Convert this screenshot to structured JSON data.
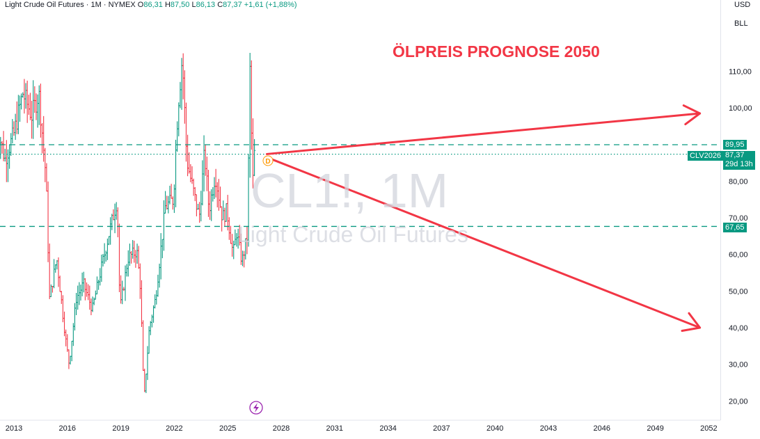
{
  "header": {
    "symbol_name": "Light Crude Oil Futures",
    "separator1": "·",
    "interval": "1M",
    "separator2": "·",
    "exchange": "NYMEX",
    "open_label": "O",
    "open": "86,31",
    "high_label": "H",
    "high": "87,50",
    "low_label": "L",
    "low": "86,13",
    "close_label": "C",
    "close": "87,37",
    "change": "+1,61 (+1,88%)"
  },
  "axis_buttons": {
    "currency": "USD",
    "unit": "BLL"
  },
  "watermark": {
    "ticker": "CL1!, 1M",
    "name": "Light Crude Oil Futures"
  },
  "annotation": {
    "title": "ÖLPREIS PROGNOSE 2050",
    "dividend_marker": "D"
  },
  "price_tags": {
    "upper_level": "89,95",
    "contract": "CLV2026",
    "last_price": "87,37",
    "countdown": "29d 13h",
    "lower_level": "67,65"
  },
  "colors": {
    "up": "#089981",
    "down": "#f23645",
    "level_line": "#089981",
    "arrow": "#f23645",
    "marker": "#ff9800",
    "lightning": "#9c27b0"
  },
  "chart_data": {
    "type": "ohlc",
    "symbol": "CL1!",
    "interval": "1M",
    "y_ticks": [
      "20,00",
      "30,00",
      "40,00",
      "50,00",
      "60,00",
      "70,00",
      "80,00",
      "100,00",
      "110,00"
    ],
    "y_tick_values": [
      20,
      30,
      40,
      50,
      60,
      70,
      80,
      100,
      110
    ],
    "x_ticks": [
      "2013",
      "2016",
      "2019",
      "2022",
      "2025",
      "2028",
      "2031",
      "2034",
      "2037",
      "2040",
      "2043",
      "2046",
      "2049",
      "2052"
    ],
    "x_tick_values": [
      2013,
      2016,
      2019,
      2022,
      2025,
      2028,
      2031,
      2034,
      2037,
      2040,
      2043,
      2046,
      2049,
      2052
    ],
    "horizontal_levels": [
      89.95,
      67.65
    ],
    "last_price": 87.37,
    "trend_arrows": [
      {
        "from": [
          2027.2,
          87.4
        ],
        "to": [
          2051.5,
          98.5
        ]
      },
      {
        "from": [
          2027.2,
          86.5
        ],
        "to": [
          2051.5,
          40.0
        ]
      }
    ],
    "monthly_close_path": [
      [
        2012.0,
        96
      ],
      [
        2012.5,
        86
      ],
      [
        2013.0,
        93
      ],
      [
        2013.5,
        104
      ],
      [
        2014.0,
        98
      ],
      [
        2014.4,
        104
      ],
      [
        2014.8,
        81
      ],
      [
        2015.0,
        48
      ],
      [
        2015.4,
        59
      ],
      [
        2015.9,
        37
      ],
      [
        2016.1,
        30
      ],
      [
        2016.5,
        48
      ],
      [
        2016.9,
        52
      ],
      [
        2017.4,
        45
      ],
      [
        2017.8,
        54
      ],
      [
        2018.4,
        67
      ],
      [
        2018.8,
        75
      ],
      [
        2018.95,
        45
      ],
      [
        2019.4,
        59
      ],
      [
        2019.9,
        61
      ],
      [
        2020.1,
        51
      ],
      [
        2020.3,
        20
      ],
      [
        2020.6,
        40
      ],
      [
        2020.95,
        48
      ],
      [
        2021.5,
        73
      ],
      [
        2021.95,
        75
      ],
      [
        2022.2,
        100
      ],
      [
        2022.45,
        114
      ],
      [
        2022.7,
        86
      ],
      [
        2022.95,
        80
      ],
      [
        2023.4,
        70
      ],
      [
        2023.7,
        88
      ],
      [
        2023.95,
        72
      ],
      [
        2024.3,
        82
      ],
      [
        2024.7,
        70
      ],
      [
        2024.95,
        72
      ],
      [
        2025.3,
        60
      ],
      [
        2025.5,
        66
      ],
      [
        2025.8,
        58
      ],
      [
        2026.1,
        65
      ],
      [
        2026.25,
        110
      ],
      [
        2026.4,
        79
      ],
      [
        2026.5,
        87.4
      ]
    ]
  }
}
